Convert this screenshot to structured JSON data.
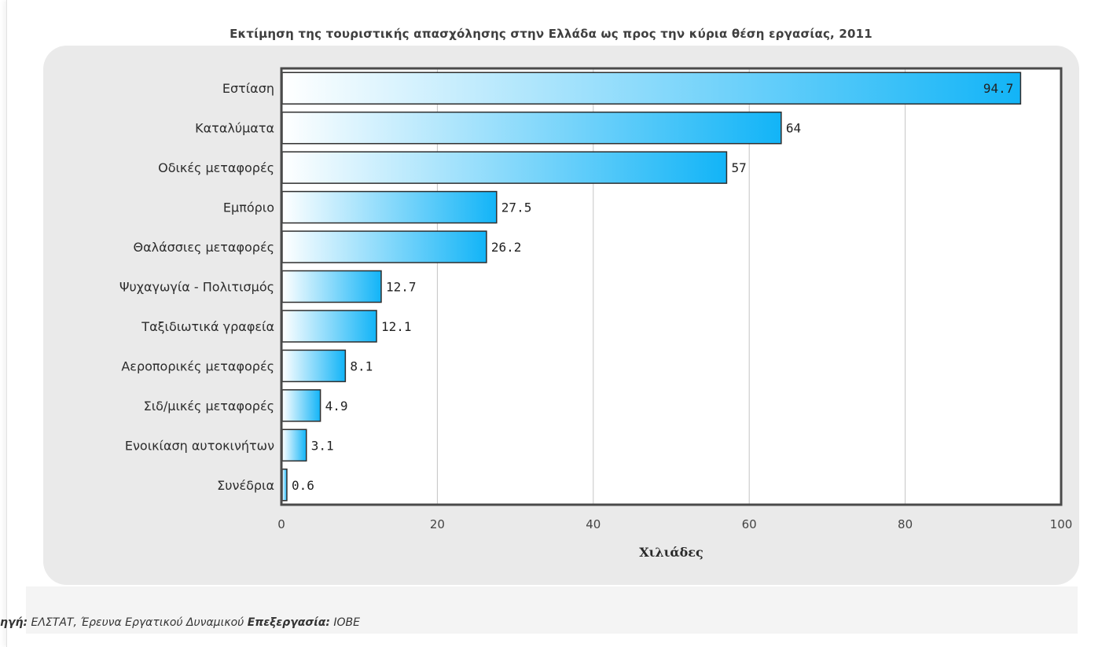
{
  "chart_data": {
    "type": "bar",
    "orientation": "horizontal",
    "title": "Εκτίμηση της τουριστικής απασχόλησης στην Ελλάδα ως προς την κύρια θέση εργασίας, 2011",
    "xlabel": "Χιλιάδες",
    "ylabel": "",
    "xlim": [
      0,
      100
    ],
    "x_ticks": [
      0,
      20,
      40,
      60,
      80,
      100
    ],
    "grid": true,
    "categories": [
      "Εστίαση",
      "Καταλύματα",
      "Οδικές μεταφορές",
      "Εμπόριο",
      "Θαλάσσιες μεταφορές",
      "Ψυχαγωγία - Πολιτισμός",
      "Ταξιδιωτικά γραφεία",
      "Αεροπορικές μεταφορές",
      "Σιδ/μικές μεταφορές",
      "Ενοικίαση αυτοκινήτων",
      "Συνέδρια"
    ],
    "values": [
      94.7,
      64,
      57,
      27.5,
      26.2,
      12.7,
      12.1,
      8.1,
      4.9,
      3.1,
      0.6
    ],
    "data_labels": [
      "94.7",
      "64",
      "57",
      "27.5",
      "26.2",
      "12.7",
      "12.1",
      "8.1",
      "4.9",
      "3.1",
      "0.6"
    ],
    "colors": {
      "bar_start": "#ffffff",
      "bar_end": "#12b4f7",
      "bar_stroke": "#2e2e2e",
      "grid": "#c4c4c4",
      "plot_border": "#4a4a4a",
      "panel": "#eaeaea"
    }
  },
  "footer": {
    "source_label": "ηγή:",
    "source_text": " ΕΛΣΤΑΤ, Έρευνα Εργατικού Δυναμικού ",
    "processing_label": "Επεξεργασία:",
    "processing_text": " ΙΟΒΕ"
  }
}
